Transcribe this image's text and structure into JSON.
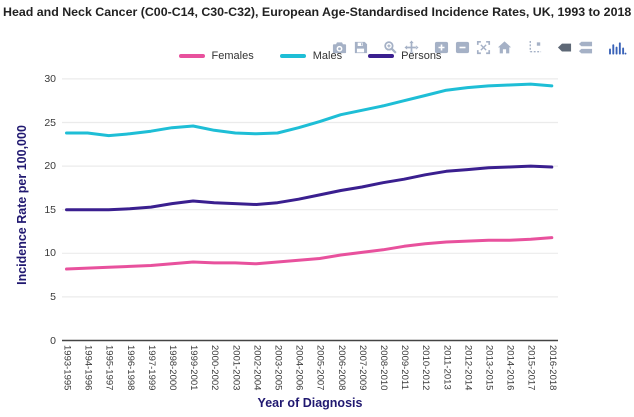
{
  "title": "Head and Neck Cancer (C00-C14, C30-C32), European Age-Standardised Incidence Rates, UK, 1993 to 2018",
  "toolbar": {
    "icons": [
      {
        "name": "camera-icon",
        "group": 0
      },
      {
        "name": "save-icon",
        "group": 0
      },
      {
        "name": "zoom-icon",
        "group": 1
      },
      {
        "name": "pan-icon",
        "group": 1
      },
      {
        "name": "zoom-in-icon",
        "group": 2
      },
      {
        "name": "zoom-out-icon",
        "group": 2
      },
      {
        "name": "autoscale-icon",
        "group": 2
      },
      {
        "name": "home-icon",
        "group": 2
      },
      {
        "name": "spikelines-icon",
        "group": 3
      },
      {
        "name": "hover-closest-icon",
        "group": 4,
        "active": true
      },
      {
        "name": "hover-compare-icon",
        "group": 4
      },
      {
        "name": "plotly-logo-icon",
        "group": 5
      }
    ]
  },
  "legend": {
    "items": [
      {
        "label": "Females",
        "color": "#E8519D"
      },
      {
        "label": "Males",
        "color": "#1EBED6"
      },
      {
        "label": "Persons",
        "color": "#3A1F8F"
      }
    ]
  },
  "chart_data": {
    "type": "line",
    "title": "Head and Neck Cancer (C00-C14, C30-C32), European Age-Standardised Incidence Rates, UK, 1993 to 2018",
    "xlabel": "Year of Diagnosis",
    "ylabel": "Incidence Rate per 100,000",
    "categories": [
      "1993-1995",
      "1994-1996",
      "1995-1997",
      "1996-1998",
      "1997-1999",
      "1998-2000",
      "1999-2001",
      "2000-2002",
      "2001-2003",
      "2002-2004",
      "2003-2005",
      "2004-2006",
      "2005-2007",
      "2006-2008",
      "2007-2009",
      "2008-2010",
      "2009-2011",
      "2010-2012",
      "2011-2013",
      "2012-2014",
      "2013-2015",
      "2014-2016",
      "2015-2017",
      "2016-2018"
    ],
    "series": [
      {
        "name": "Females",
        "color": "#E8519D",
        "values": [
          8.2,
          8.3,
          8.4,
          8.5,
          8.6,
          8.8,
          9.0,
          8.9,
          8.9,
          8.8,
          9.0,
          9.2,
          9.4,
          9.8,
          10.1,
          10.4,
          10.8,
          11.1,
          11.3,
          11.4,
          11.5,
          11.5,
          11.6,
          11.8
        ]
      },
      {
        "name": "Males",
        "color": "#1EBED6",
        "values": [
          23.8,
          23.8,
          23.5,
          23.7,
          24.0,
          24.4,
          24.6,
          24.1,
          23.8,
          23.7,
          23.8,
          24.4,
          25.1,
          25.9,
          26.4,
          26.9,
          27.5,
          28.1,
          28.7,
          29.0,
          29.2,
          29.3,
          29.4,
          29.2
        ]
      },
      {
        "name": "Persons",
        "color": "#3A1F8F",
        "values": [
          15.0,
          15.0,
          15.0,
          15.1,
          15.3,
          15.7,
          16.0,
          15.8,
          15.7,
          15.6,
          15.8,
          16.2,
          16.7,
          17.2,
          17.6,
          18.1,
          18.5,
          19.0,
          19.4,
          19.6,
          19.8,
          19.9,
          20.0,
          19.9
        ]
      }
    ],
    "ylim": [
      0,
      30
    ],
    "yticks": [
      0,
      5,
      10,
      15,
      20,
      25,
      30
    ],
    "grid": true,
    "legend_position": "top-center"
  },
  "colors": {
    "title_text": "#222222",
    "axis_title": "#201870",
    "tick_label": "#3A3A3A",
    "gridline": "#EBEBEB",
    "axis_line": "#444444",
    "modebar_icon": "#A5B1C6",
    "modebar_icon_active": "#5E6876",
    "plotly_logo_blue": "#3A63B8"
  }
}
